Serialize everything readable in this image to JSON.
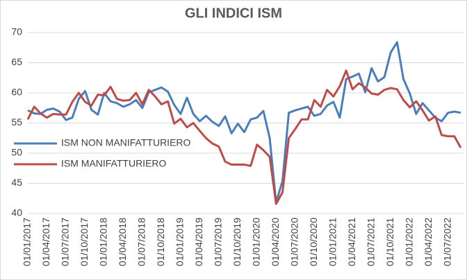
{
  "chart_data": {
    "type": "line",
    "title": "GLI INDICI ISM",
    "categories": [
      "01/01/2017",
      null,
      null,
      "01/04/2017",
      null,
      null,
      "01/07/2017",
      null,
      null,
      "01/10/2017",
      null,
      null,
      "01/01/2018",
      null,
      null,
      "01/04/2018",
      null,
      null,
      "01/07/2018",
      null,
      null,
      "01/10/2018",
      null,
      null,
      "01/01/2019",
      null,
      null,
      "01/04/2019",
      null,
      null,
      "01/07/2019",
      null,
      null,
      "01/10/2019",
      null,
      null,
      "01/01/2020",
      null,
      null,
      "01/04/2020",
      null,
      null,
      "01/07/2020",
      null,
      null,
      "01/10/2020",
      null,
      null,
      "01/01/2021",
      null,
      null,
      "01/04/2021",
      null,
      null,
      "01/07/2021",
      null,
      null,
      "01/10/2021",
      null,
      null,
      "01/01/2022",
      null,
      null,
      "01/04/2022",
      null,
      null,
      "01/07/2022",
      null,
      null
    ],
    "series": [
      {
        "name": "ISM NON MANIFATTURIERO",
        "color": "#4a7ebb",
        "values": [
          57.1,
          56.6,
          56.5,
          57.2,
          57.4,
          56.9,
          55.5,
          55.9,
          59.0,
          60.3,
          57.2,
          56.4,
          60.0,
          58.6,
          58.3,
          57.7,
          58.1,
          58.8,
          57.5,
          60.1,
          60.5,
          60.9,
          60.2,
          58.0,
          56.5,
          59.2,
          56.5,
          55.3,
          56.2,
          55.2,
          54.5,
          56.1,
          53.3,
          54.9,
          53.5,
          55.6,
          55.9,
          57.0,
          52.5,
          41.8,
          45.4,
          56.7,
          57.1,
          57.4,
          57.7,
          56.2,
          56.5,
          57.9,
          58.5,
          55.9,
          62.3,
          62.7,
          63.2,
          60.1,
          64.1,
          61.9,
          62.6,
          66.7,
          68.4,
          62.3,
          59.9,
          56.5,
          58.3,
          57.1,
          55.9,
          55.3,
          56.7,
          56.9,
          56.7
        ]
      },
      {
        "name": "ISM MANIFATTURIERO",
        "color": "#be4b48",
        "values": [
          55.6,
          57.7,
          56.6,
          55.9,
          56.5,
          56.4,
          56.4,
          58.5,
          60.0,
          58.5,
          57.9,
          59.7,
          59.6,
          61.0,
          59.0,
          58.7,
          58.8,
          60.0,
          58.1,
          60.5,
          59.4,
          58.1,
          58.6,
          54.9,
          55.7,
          54.3,
          55.0,
          53.7,
          52.5,
          51.6,
          51.1,
          48.6,
          48.1,
          48.1,
          48.1,
          47.9,
          51.4,
          50.5,
          49.4,
          41.6,
          43.5,
          52.5,
          54.0,
          55.6,
          55.6,
          58.8,
          57.7,
          60.5,
          59.4,
          61.1,
          63.7,
          60.6,
          61.6,
          60.9,
          59.9,
          59.7,
          60.5,
          60.8,
          60.6,
          58.8,
          57.6,
          58.6,
          57.1,
          55.4,
          56.1,
          53.0,
          52.8,
          52.8,
          50.9
        ]
      }
    ],
    "ylim": [
      40,
      70
    ],
    "yticks": [
      40,
      45,
      50,
      55,
      60,
      65,
      70
    ],
    "grid": true,
    "legend": "left"
  }
}
